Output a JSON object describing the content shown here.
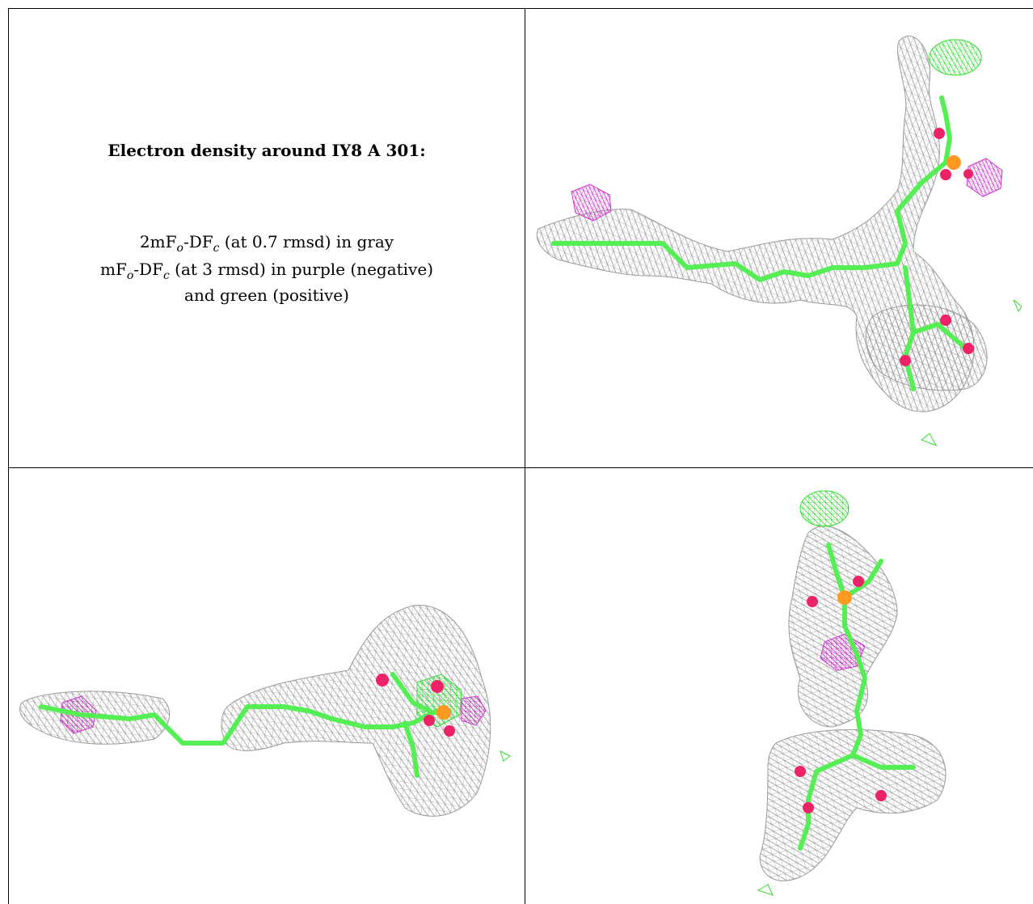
{
  "legend": {
    "title": "Electron density around IY8 A 301:",
    "line1_a": "2mF",
    "line1_sub1": "o",
    "line1_b": "-DF",
    "line1_sub2": "c",
    "line1_c": " (at 0.7 rmsd) in gray",
    "line2_a": "mF",
    "line2_sub1": "o",
    "line2_b": "-DF",
    "line2_sub2": "c",
    "line2_c": " (at 3 rmsd) in purple (negative)",
    "line3": "and green (positive)"
  },
  "colors": {
    "mesh": "#9a9a9a",
    "carbon": "#55ee55",
    "oxygen": "#ee2266",
    "phosphorus": "#ff9922",
    "negative": "#cc33cc",
    "positive": "#33dd33"
  }
}
